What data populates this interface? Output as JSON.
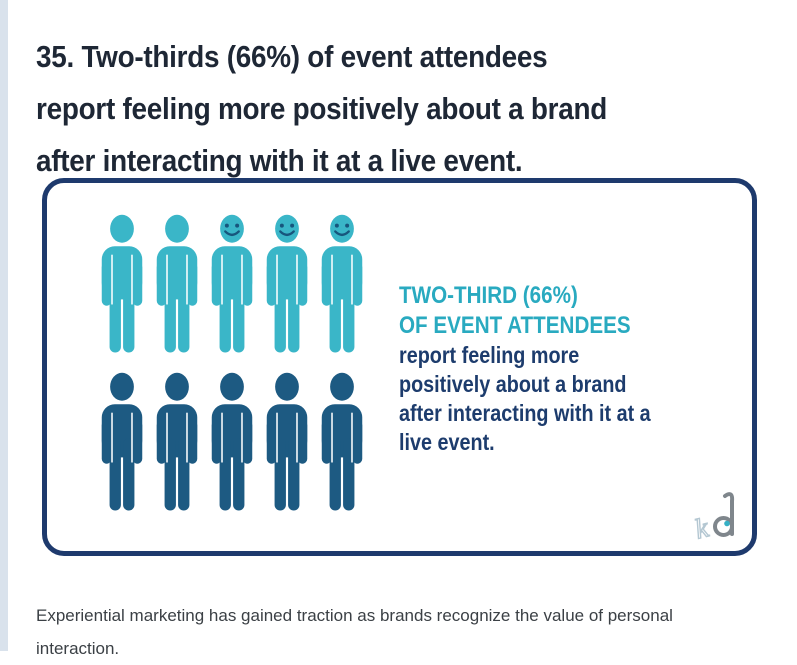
{
  "page": {
    "heading_lines": [
      "35. Two-thirds (66%) of event attendees",
      "report feeling more positively about a brand",
      "after interacting with it at a live event."
    ],
    "footer_lines": [
      "Experiential marketing has gained traction as brands recognize the value of personal",
      "interaction."
    ]
  },
  "infographic": {
    "highlight_lines": [
      "TWO-THIRD (66%)",
      "OF EVENT ATTENDEES"
    ],
    "body_lines": [
      "report feeling more",
      "positively about a brand",
      "after interacting with it at a",
      "live event."
    ],
    "logo_k": "k",
    "logo_d": "d",
    "figures": {
      "rows": [
        {
          "color_key": "teal",
          "people": [
            {
              "smile": false
            },
            {
              "smile": false
            },
            {
              "smile": true
            },
            {
              "smile": true
            },
            {
              "smile": true
            }
          ]
        },
        {
          "color_key": "navy",
          "people": [
            {
              "smile": false
            },
            {
              "smile": false
            },
            {
              "smile": false
            },
            {
              "smile": false
            },
            {
              "smile": false
            }
          ]
        }
      ]
    },
    "colors": {
      "teal": "#3ab6c8",
      "navy": "#1d5a82",
      "face": "#17567d",
      "border": "#1e3a6d",
      "accent_text": "#29aac0",
      "body_text": "#1d3c6d",
      "heading_text": "#1e2735",
      "footer_text": "#3b4045",
      "left_strip": "#d9e2ec",
      "logo_gray": "#7f868c",
      "logo_light_blue": "#b4c7d2"
    }
  }
}
